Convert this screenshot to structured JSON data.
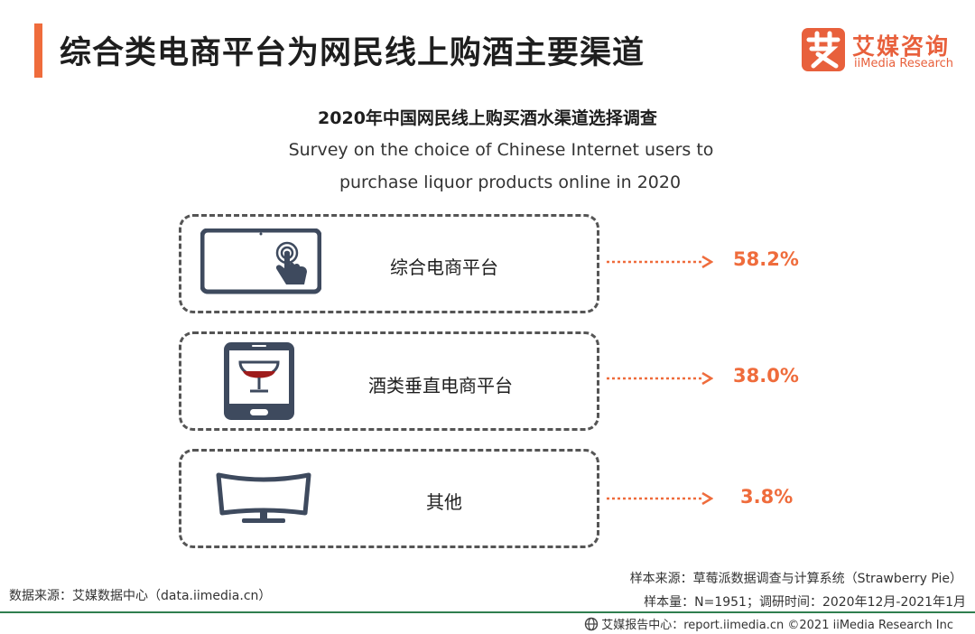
{
  "header": {
    "title": "综合类电商平台为网民线上购酒主要渠道",
    "logo_cn": "艾媒咨询",
    "logo_en": "iiMedia Research"
  },
  "chart_data": {
    "type": "bar",
    "title": "2020年中国网民线上购买酒水渠道选择调查",
    "subtitle_line1": "Survey on the choice of Chinese Internet users to",
    "subtitle_line2": "purchase liquor products online in 2020",
    "categories": [
      "综合电商平台",
      "酒类垂直电商平台",
      "其他"
    ],
    "values": [
      58.2,
      38.0,
      3.8
    ],
    "value_labels": [
      "58.2%",
      "38.0%",
      "3.8%"
    ],
    "unit": "%",
    "icons": [
      "tablet-touch-icon",
      "phone-wine-glass-icon",
      "curved-monitor-icon"
    ],
    "accent_color": "#ef6c3c"
  },
  "footer": {
    "data_source": "数据来源：艾媒数据中心（data.iimedia.cn）",
    "sample_source": "样本来源：草莓派数据调查与计算系统（Strawberry Pie）",
    "sample_size": "样本量：N=1951；调研时间：2020年12月-2021年1月",
    "report_center": "艾媒报告中心：report.iimedia.cn   ©2021  iiMedia Research  Inc"
  }
}
